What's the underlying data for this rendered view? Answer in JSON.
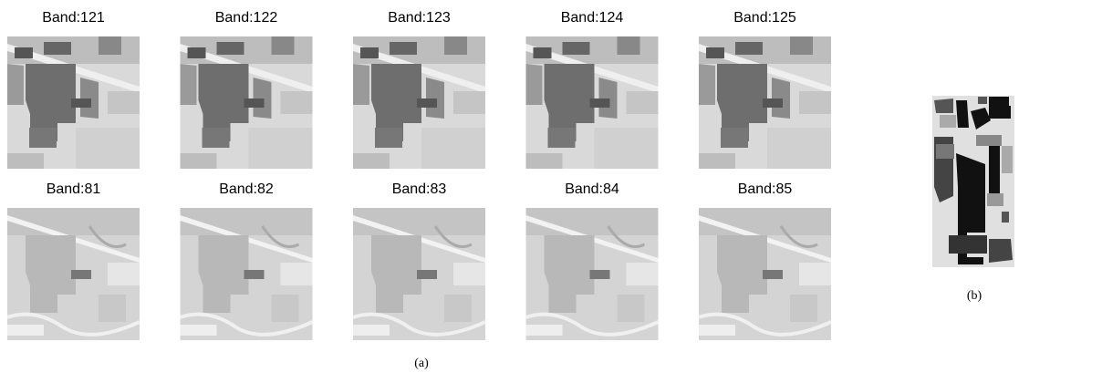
{
  "panel_a": {
    "rows": [
      {
        "labels": [
          "Band:121",
          "Band:122",
          "Band:123",
          "Band:124",
          "Band:125"
        ]
      },
      {
        "labels": [
          "Band:81",
          "Band:82",
          "Band:83",
          "Band:84",
          "Band:85"
        ]
      }
    ],
    "caption": "(a)"
  },
  "panel_b": {
    "caption": "(b)"
  }
}
